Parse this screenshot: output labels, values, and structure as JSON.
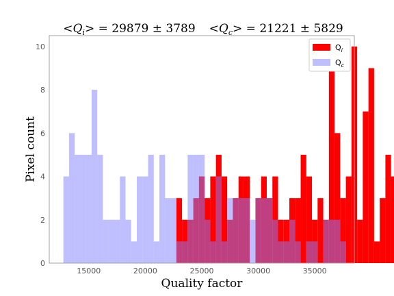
{
  "chart_data": {
    "type": "bar",
    "title": "<Q_i> = 29879 ± 3789     <Q_c> = 21221 ± 5829",
    "title_parts": {
      "qi_symbol": "<Q",
      "qi_sub": "i",
      "qi_value": "> = 29879 ± 3789",
      "qc_symbol": "<Q",
      "qc_sub": "c",
      "qc_value": "> = 21221 ± 5829"
    },
    "xlabel": "Quality factor",
    "ylabel": "Pixel count",
    "xlim": [
      11500,
      38500
    ],
    "ylim": [
      0,
      10.5
    ],
    "xticks": [
      15000,
      20000,
      25000,
      30000,
      35000
    ],
    "yticks": [
      0,
      2,
      4,
      6,
      8,
      10
    ],
    "grid": false,
    "legend_position": "top-right",
    "bin_width": 500,
    "series": [
      {
        "name": "Q",
        "name_sub": "i",
        "color": "#ff0000",
        "opacity": 1.0,
        "bin_start": 22750,
        "values": [
          3,
          2,
          2,
          3,
          4,
          3,
          4,
          5,
          4,
          2,
          3,
          4,
          4,
          0,
          3,
          4,
          3,
          4,
          2,
          2,
          3,
          3,
          5,
          4,
          2,
          3,
          2,
          10,
          6,
          3,
          4,
          10,
          2,
          7,
          9,
          1,
          3,
          5,
          4,
          4,
          3,
          5,
          4,
          4,
          2,
          0,
          1,
          5,
          3,
          5,
          3
        ]
      },
      {
        "name": "Q",
        "name_sub": "c",
        "color": "#8080ff",
        "opacity": 0.5,
        "bin_start": 12750,
        "values": [
          4,
          6,
          5,
          5,
          5,
          8,
          5,
          2,
          2,
          2,
          4,
          2,
          1,
          4,
          4,
          5,
          1,
          5,
          3,
          3,
          1,
          1,
          5,
          5,
          5,
          2,
          1,
          4,
          1,
          3,
          3,
          3,
          3,
          2,
          3,
          3,
          3,
          2,
          1,
          1,
          2,
          1,
          0,
          1,
          1,
          0,
          2,
          2,
          2,
          1
        ]
      }
    ]
  }
}
